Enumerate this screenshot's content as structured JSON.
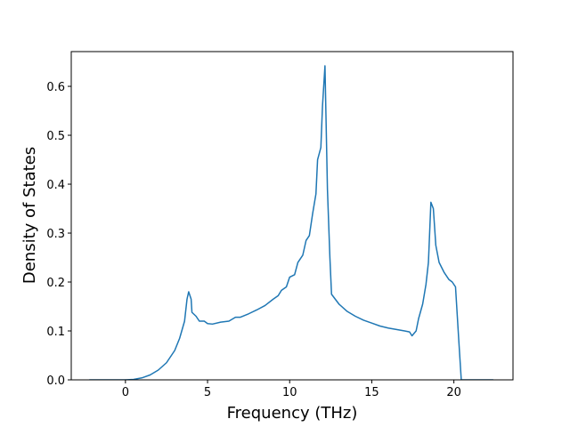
{
  "chart_data": {
    "type": "line",
    "x_label": "Frequency (THz)",
    "y_label": "Density of States",
    "xlim": [
      -3.3,
      23.6
    ],
    "ylim": [
      0,
      0.671
    ],
    "xticks": [
      0,
      5,
      10,
      15,
      20
    ],
    "yticks": [
      {
        "value": 0,
        "label": "0.0"
      },
      0.1,
      0.2,
      0.3,
      0.4,
      0.5,
      0.6
    ],
    "x": [
      -2.2,
      -1,
      0,
      0.5,
      1,
      1.5,
      2,
      2.5,
      3,
      3.3,
      3.6,
      3.75,
      3.85,
      4,
      4.05,
      4.3,
      4.5,
      4.8,
      5,
      5.3,
      5.8,
      6.3,
      6.7,
      7,
      7.5,
      8,
      8.5,
      9,
      9.3,
      9.5,
      9.8,
      10,
      10.3,
      10.5,
      10.8,
      11,
      11.2,
      11.4,
      11.6,
      11.7,
      11.9,
      12,
      12.15,
      12.3,
      12.45,
      12.55,
      13,
      13.5,
      14,
      14.5,
      15,
      15.5,
      16,
      16.5,
      17,
      17.3,
      17.45,
      17.7,
      17.85,
      18.1,
      18.3,
      18.45,
      18.6,
      18.75,
      18.9,
      19.1,
      19.4,
      19.7,
      19.9,
      20.1,
      20.3,
      20.45,
      21,
      22.4
    ],
    "series": [
      {
        "color": "#1f77b4",
        "values": [
          0,
          0,
          0,
          0.001,
          0.004,
          0.01,
          0.02,
          0.035,
          0.06,
          0.085,
          0.12,
          0.165,
          0.18,
          0.165,
          0.138,
          0.13,
          0.12,
          0.12,
          0.115,
          0.114,
          0.118,
          0.12,
          0.128,
          0.128,
          0.135,
          0.143,
          0.152,
          0.165,
          0.172,
          0.183,
          0.19,
          0.21,
          0.215,
          0.24,
          0.255,
          0.285,
          0.295,
          0.34,
          0.38,
          0.45,
          0.475,
          0.56,
          0.642,
          0.39,
          0.25,
          0.175,
          0.155,
          0.14,
          0.13,
          0.122,
          0.116,
          0.11,
          0.106,
          0.103,
          0.1,
          0.098,
          0.09,
          0.1,
          0.125,
          0.155,
          0.195,
          0.24,
          0.363,
          0.35,
          0.275,
          0.24,
          0.22,
          0.205,
          0.2,
          0.19,
          0.08,
          0,
          0,
          0
        ]
      }
    ]
  }
}
